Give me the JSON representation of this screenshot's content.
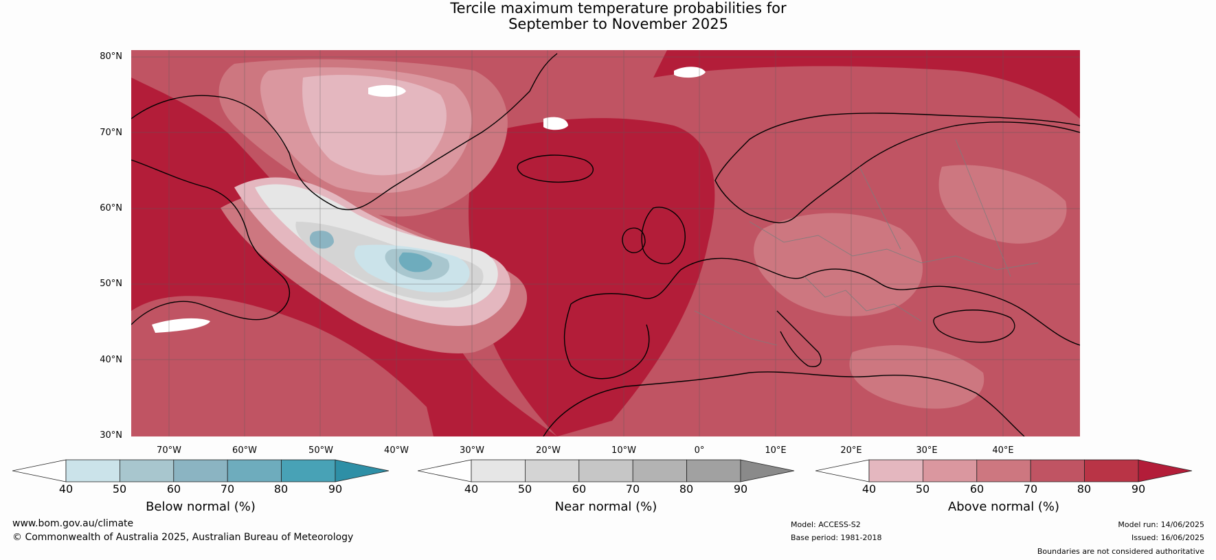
{
  "title": {
    "line1": "Tercile maximum temperature probabilities for",
    "line2": "September to November 2025"
  },
  "axes": {
    "lat_labels": [
      "80°N",
      "70°N",
      "60°N",
      "50°N",
      "40°N",
      "30°N"
    ],
    "lon_labels": [
      "70°W",
      "60°W",
      "50°W",
      "40°W",
      "30°W",
      "20°W",
      "10°W",
      "0°",
      "10°E",
      "20°E",
      "30°E",
      "40°E"
    ]
  },
  "colorbars": [
    {
      "label": "Below normal (%)",
      "ticks": [
        "40",
        "50",
        "60",
        "70",
        "80",
        "90"
      ],
      "colors": [
        "#ffffff",
        "#cbe3ea",
        "#a8c6ce",
        "#8bb4c2",
        "#6eacbd",
        "#48a2b6",
        "#2e8fa6"
      ]
    },
    {
      "label": "Near normal (%)",
      "ticks": [
        "40",
        "50",
        "60",
        "70",
        "80",
        "90"
      ],
      "colors": [
        "#ffffff",
        "#e6e6e6",
        "#d4d4d4",
        "#c6c6c6",
        "#b3b3b3",
        "#a1a1a1",
        "#8a8a8a"
      ]
    },
    {
      "label": "Above normal (%)",
      "ticks": [
        "40",
        "50",
        "60",
        "70",
        "80",
        "90"
      ],
      "colors": [
        "#ffffff",
        "#e4b7bf",
        "#da979f",
        "#cd7780",
        "#c05463",
        "#b93446",
        "#b31d39"
      ]
    }
  ],
  "footer": {
    "website": "www.bom.gov.au/climate",
    "copyright": "© Commonwealth of Australia 2025, Australian Bureau of Meteorology",
    "model": "Model: ACCESS-S2",
    "base_period": "Base period: 1981-2018",
    "model_run": "Model run: 14/06/2025",
    "issued": "Issued: 16/06/2025",
    "disclaimer": "Boundaries are not considered authoritative"
  }
}
